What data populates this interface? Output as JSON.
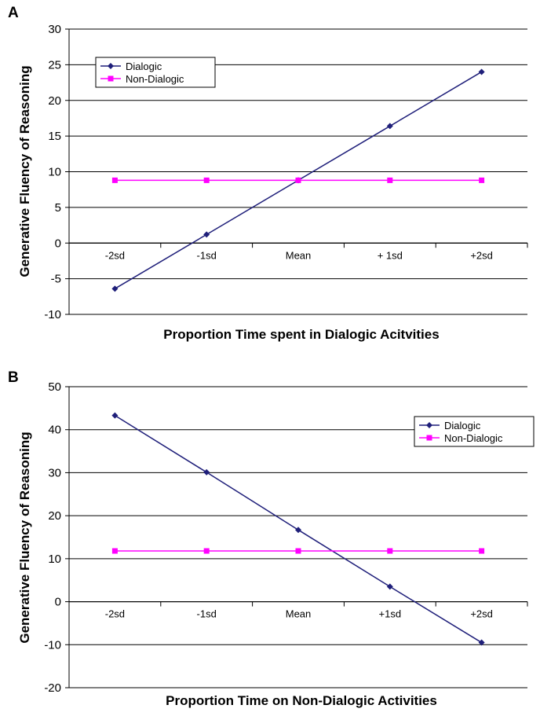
{
  "chart_data": [
    {
      "panel": "A",
      "type": "line",
      "categories": [
        "-2sd",
        "-1sd",
        "Mean",
        "+ 1sd",
        "+2sd"
      ],
      "series": [
        {
          "name": "Dialogic",
          "values": [
            -6.4,
            1.2,
            8.8,
            16.4,
            24.0
          ],
          "color": "#1f1f7a",
          "marker": "diamond"
        },
        {
          "name": "Non-Dialogic",
          "values": [
            8.8,
            8.8,
            8.8,
            8.8,
            8.8
          ],
          "color": "#ff00ff",
          "marker": "square"
        }
      ],
      "xlabel": "Proportion Time spent in Dialogic Acitvities",
      "ylabel": "Generative Fluency of Reasoning",
      "ylim": [
        -10,
        30
      ],
      "yticks": [
        -10,
        -5,
        0,
        5,
        10,
        15,
        20,
        25,
        30
      ],
      "yticklabels": [
        "-10",
        "-5",
        "0",
        "5",
        "10",
        "15",
        "20",
        "25",
        "30"
      ],
      "grid": true,
      "legend": "top-left"
    },
    {
      "panel": "B",
      "type": "line",
      "categories": [
        "-2sd",
        "-1sd",
        "Mean",
        "+1sd",
        "+2sd"
      ],
      "series": [
        {
          "name": "Dialogic",
          "values": [
            43.3,
            30.1,
            16.7,
            3.5,
            -9.5
          ],
          "color": "#1f1f7a",
          "marker": "diamond"
        },
        {
          "name": "Non-Dialogic",
          "values": [
            11.8,
            11.8,
            11.8,
            11.8,
            11.8
          ],
          "color": "#ff00ff",
          "marker": "square"
        }
      ],
      "xlabel": "Proportion Time on Non-Dialogic Activities",
      "ylabel": "Generative Fluency of Reasoning",
      "ylim": [
        -20,
        50
      ],
      "yticks": [
        -20,
        -10,
        0,
        10,
        20,
        30,
        40,
        50
      ],
      "yticklabels": [
        "-20",
        "-10",
        "0",
        "10",
        "20",
        "30",
        "40",
        "50"
      ],
      "grid": true,
      "legend": "top-right"
    }
  ]
}
